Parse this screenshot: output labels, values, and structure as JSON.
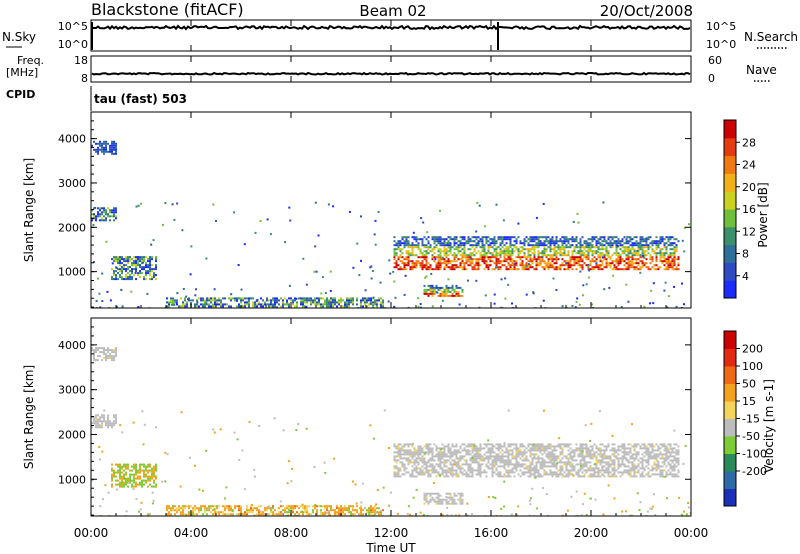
{
  "header": {
    "station": "Blackstone (fitACF)",
    "beam": "Beam 02",
    "date": "20/Oct/2008"
  },
  "top_panels": {
    "nsky_label": "N.Sky",
    "nsky_ticks": [
      "10^5",
      "10^0"
    ],
    "nsearch_label": "N.Search",
    "nsearch_ticks": [
      "10^5",
      "10^0"
    ],
    "freq_label": "Freq.",
    "freq_unit": "[MHz]",
    "freq_ticks": [
      "18",
      "8"
    ],
    "nave_label": "Nave",
    "nave_ticks": [
      "60",
      "0"
    ],
    "cpid_label": "CPID",
    "cpid_value": "tau (fast) 503"
  },
  "chart_data": [
    {
      "type": "heatmap",
      "name": "power",
      "ylabel": "Slant Range [km]",
      "yticks": [
        "1000",
        "2000",
        "3000",
        "4000"
      ],
      "ylim": [
        180,
        4600
      ],
      "xlim_hours": [
        0,
        24
      ],
      "colorbar": {
        "label": "Power [dB]",
        "ticks": [
          "4",
          "8",
          "12",
          "16",
          "20",
          "24",
          "28"
        ],
        "range": [
          0,
          32
        ],
        "colors": [
          "#1a2bff",
          "#2e4bc4",
          "#2f6f9c",
          "#3b8f6a",
          "#6fbf3a",
          "#c8d21f",
          "#f0b11a",
          "#f07a10",
          "#e43c10",
          "#cc0000"
        ]
      },
      "regions": [
        {
          "t": [
            0.0,
            1.0
          ],
          "r": [
            3650,
            3950
          ],
          "level": "low"
        },
        {
          "t": [
            0.0,
            1.0
          ],
          "r": [
            2150,
            2450
          ],
          "level": "mid"
        },
        {
          "t": [
            0.8,
            2.6
          ],
          "r": [
            850,
            1350
          ],
          "level": "mid"
        },
        {
          "t": [
            3.0,
            11.7
          ],
          "r": [
            200,
            420
          ],
          "level": "mid"
        },
        {
          "t": [
            12.1,
            23.5
          ],
          "r": [
            1050,
            1800
          ],
          "level": "high"
        },
        {
          "t": [
            13.3,
            14.9
          ],
          "r": [
            450,
            700
          ],
          "level": "high"
        }
      ]
    },
    {
      "type": "heatmap",
      "name": "velocity",
      "ylabel": "Slant Range [km]",
      "xlabel": "Time UT",
      "xticks": [
        "00:00",
        "04:00",
        "08:00",
        "12:00",
        "16:00",
        "20:00",
        "00:00"
      ],
      "yticks": [
        "1000",
        "2000",
        "3000",
        "4000"
      ],
      "ylim": [
        180,
        4600
      ],
      "xlim_hours": [
        0,
        24
      ],
      "colorbar": {
        "label": "Velocity [m s-1]",
        "ticks": [
          "200",
          "100",
          "50",
          "15",
          "-15",
          "-50",
          "-100",
          "-200"
        ],
        "colors": [
          "#1b2fb8",
          "#2c6aa8",
          "#2a8a5a",
          "#7ccc33",
          "#bdbdbd",
          "#f2d55a",
          "#f4a21e",
          "#f06a14",
          "#e22a10",
          "#cc0000"
        ]
      },
      "regions": [
        {
          "t": [
            0.0,
            1.0
          ],
          "r": [
            3650,
            3950
          ],
          "class": "gray"
        },
        {
          "t": [
            0.0,
            1.0
          ],
          "r": [
            2150,
            2450
          ],
          "class": "gray"
        },
        {
          "t": [
            0.8,
            2.6
          ],
          "r": [
            850,
            1350
          ],
          "class": "green-orange"
        },
        {
          "t": [
            3.0,
            11.7
          ],
          "r": [
            200,
            420
          ],
          "class": "orange"
        },
        {
          "t": [
            12.1,
            23.5
          ],
          "r": [
            1050,
            1800
          ],
          "class": "gray"
        },
        {
          "t": [
            13.3,
            14.9
          ],
          "r": [
            450,
            700
          ],
          "class": "gray"
        }
      ]
    }
  ]
}
